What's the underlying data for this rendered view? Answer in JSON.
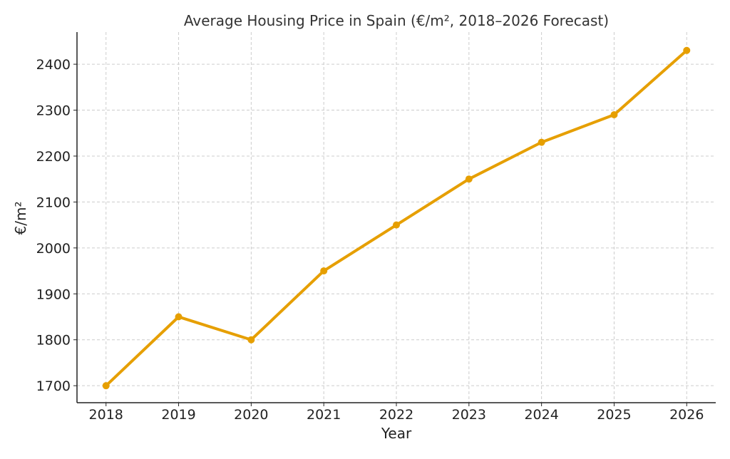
{
  "chart_data": {
    "type": "line",
    "title": "Average Housing Price in Spain (€/m², 2018–2026 Forecast)",
    "xlabel": "Year",
    "ylabel": "€/m²",
    "x": [
      2018,
      2019,
      2020,
      2021,
      2022,
      2023,
      2024,
      2025,
      2026
    ],
    "series": [
      {
        "values": [
          1700,
          1850,
          1800,
          1950,
          2050,
          2150,
          2230,
          2290,
          2430
        ],
        "color": "#E69F00",
        "marker": "circle"
      }
    ],
    "xticks": [
      "2018",
      "2019",
      "2020",
      "2021",
      "2022",
      "2023",
      "2024",
      "2025",
      "2026"
    ],
    "yticks": [
      "1700",
      "1800",
      "1900",
      "2000",
      "2100",
      "2200",
      "2300",
      "2400"
    ],
    "xlim": [
      2017.6,
      2026.4
    ],
    "ylim": [
      1663,
      2470
    ],
    "grid": true,
    "grid_style": "dashed",
    "legend": "none"
  }
}
